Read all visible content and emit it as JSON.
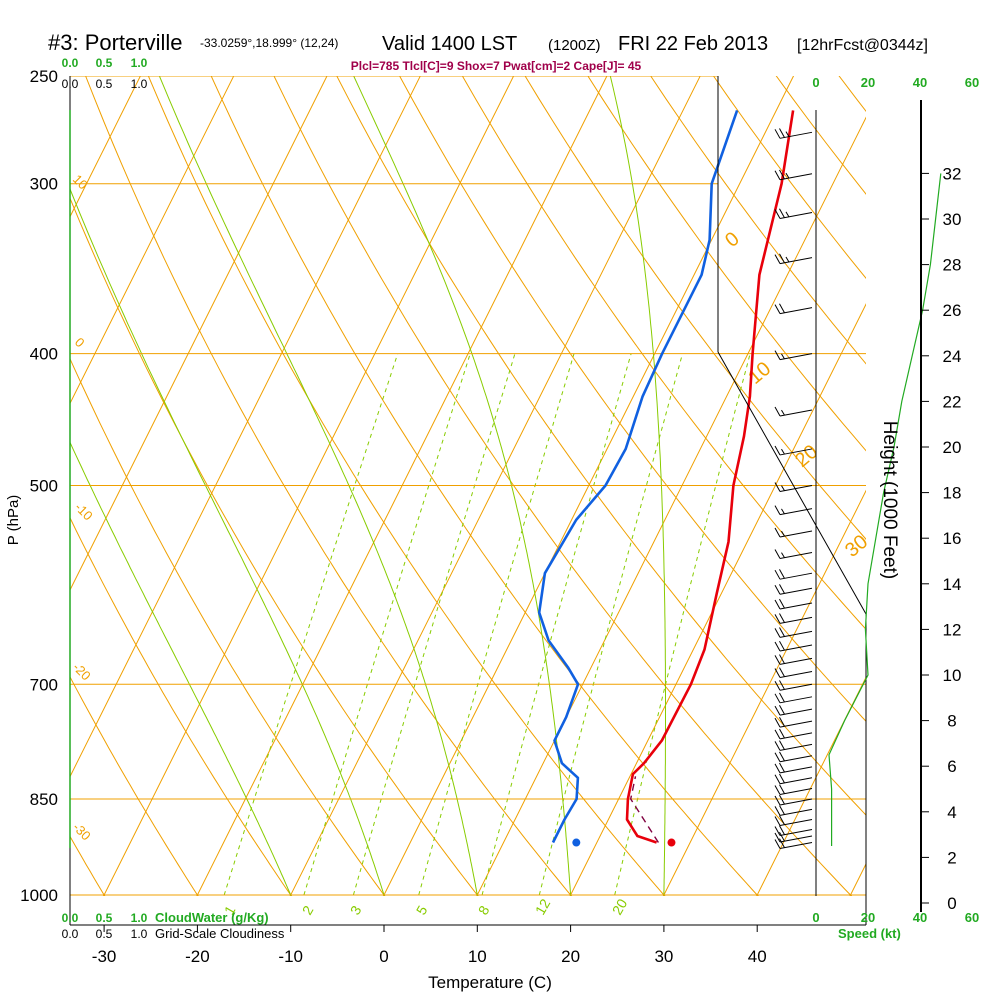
{
  "header": {
    "station": "#3: Porterville",
    "coords": "-33.0259°,18.999° (12,24)",
    "valid": "Valid 1400 LST",
    "utc": "(1200Z)",
    "date": "FRI 22 Feb 2013",
    "forecast": "[12hrFcst@0344z]",
    "indices": "Plcl=785 Tlcl[C]=9 Shox=7 Pwat[cm]=2 Cape[J]= 45"
  },
  "colors": {
    "isotherm": "#f0a000",
    "dry_adiabat": "#f0a000",
    "moist_adiabat": "#88cc00",
    "mixing_ratio": "#88cc00",
    "temperature": "#e8000b",
    "dewpoint": "#1060e0",
    "parcel": "#800040",
    "green_label": "#22aa22",
    "magenta_text": "#a0004a",
    "wind": "#000000",
    "cloud": "#22aa22"
  },
  "chart_data": {
    "type": "skew-t log-p",
    "xlabel": "Temperature (C)",
    "ylabel": "P (hPa)",
    "y2label": "Height (1000 Feet)",
    "xlim": [
      -33,
      35
    ],
    "ylim_hpa": [
      1000,
      250
    ],
    "x_ticks": [
      "-30",
      "-20",
      "-10",
      "0",
      "10",
      "20",
      "30",
      "40"
    ],
    "x_tick_values": [
      -30,
      -20,
      -10,
      0,
      10,
      20,
      30,
      40
    ],
    "pressure_levels": [
      1000,
      850,
      700,
      500,
      400,
      300,
      250
    ],
    "pressure_labels": [
      "1000",
      "850",
      "700",
      "500",
      "400",
      "300",
      "250"
    ],
    "height_ticks": [
      "0",
      "2",
      "4",
      "6",
      "8",
      "10",
      "12",
      "14",
      "16",
      "18",
      "20",
      "22",
      "24",
      "26",
      "28",
      "30",
      "32"
    ],
    "height_tick_values_kft": [
      0,
      2,
      4,
      6,
      8,
      10,
      12,
      14,
      16,
      18,
      20,
      22,
      24,
      26,
      28,
      30,
      32
    ],
    "isotherm_labels": [
      "0",
      "10",
      "20",
      "30"
    ],
    "dry_adiabat_labels": [
      "10",
      "0",
      "-10",
      "-20",
      "-30"
    ],
    "mixing_ratio_labels": [
      "1",
      "2",
      "3",
      "5",
      "8",
      "12",
      "20"
    ],
    "mixing_ratio_values": [
      1,
      2,
      3,
      5,
      8,
      12,
      20
    ],
    "moist_adiabat_temps": [
      -10,
      0,
      10,
      20,
      30
    ],
    "cloud_axis_labels": [
      "0.0",
      "0.5",
      "1.0"
    ],
    "cloud_water_label": "CloudWater (g/Kg)",
    "cloudiness_label": "Grid-Scale Cloudiness",
    "speed_label": "Speed (kt)",
    "speed_ticks": [
      "0",
      "20",
      "40",
      "60"
    ],
    "speed_tick_values": [
      0,
      20,
      40,
      60
    ],
    "temperature": [
      {
        "p": 915,
        "t": 26.4
      },
      {
        "p": 905,
        "t": 24.0
      },
      {
        "p": 880,
        "t": 22.0
      },
      {
        "p": 850,
        "t": 21.0
      },
      {
        "p": 815,
        "t": 20.2
      },
      {
        "p": 800,
        "t": 20.8
      },
      {
        "p": 770,
        "t": 21.5
      },
      {
        "p": 700,
        "t": 21.6
      },
      {
        "p": 660,
        "t": 21.2
      },
      {
        "p": 600,
        "t": 19.5
      },
      {
        "p": 550,
        "t": 18.0
      },
      {
        "p": 500,
        "t": 15.5
      },
      {
        "p": 460,
        "t": 14.0
      },
      {
        "p": 430,
        "t": 12.5
      },
      {
        "p": 400,
        "t": 10.5
      },
      {
        "p": 350,
        "t": 7.0
      },
      {
        "p": 300,
        "t": 4.5
      },
      {
        "p": 265,
        "t": 1.8
      }
    ],
    "dewpoint": [
      {
        "p": 915,
        "td": 15.3
      },
      {
        "p": 880,
        "td": 15.3
      },
      {
        "p": 850,
        "td": 15.5
      },
      {
        "p": 820,
        "td": 14.5
      },
      {
        "p": 800,
        "td": 12.0
      },
      {
        "p": 770,
        "td": 10.0
      },
      {
        "p": 740,
        "td": 10.0
      },
      {
        "p": 700,
        "td": 9.5
      },
      {
        "p": 680,
        "td": 7.5
      },
      {
        "p": 650,
        "td": 4.0
      },
      {
        "p": 620,
        "td": 1.5
      },
      {
        "p": 580,
        "td": 0.0
      },
      {
        "p": 530,
        "td": 0.5
      },
      {
        "p": 500,
        "td": 1.8
      },
      {
        "p": 470,
        "td": 2.0
      },
      {
        "p": 430,
        "td": 1.0
      },
      {
        "p": 400,
        "td": 0.8
      },
      {
        "p": 350,
        "td": 0.8
      },
      {
        "p": 330,
        "td": -0.2
      },
      {
        "p": 300,
        "td": -3.0
      },
      {
        "p": 265,
        "td": -4.2
      }
    ],
    "parcel": [
      {
        "p": 915,
        "t": 26.6
      },
      {
        "p": 880,
        "t": 23.8
      },
      {
        "p": 850,
        "t": 21.3
      },
      {
        "p": 818,
        "t": 20.6
      }
    ],
    "surface_temp_marker": {
      "p": 915,
      "t": 28.0
    },
    "surface_dewpoint_marker": {
      "p": 915,
      "td": 17.8
    },
    "wind_levels": [
      {
        "p": 915,
        "speed_kt": 20
      },
      {
        "p": 905,
        "speed_kt": 20
      },
      {
        "p": 895,
        "speed_kt": 20
      },
      {
        "p": 880,
        "speed_kt": 20
      },
      {
        "p": 865,
        "speed_kt": 20
      },
      {
        "p": 850,
        "speed_kt": 20
      },
      {
        "p": 835,
        "speed_kt": 20
      },
      {
        "p": 820,
        "speed_kt": 20
      },
      {
        "p": 805,
        "speed_kt": 20
      },
      {
        "p": 790,
        "speed_kt": 20
      },
      {
        "p": 775,
        "speed_kt": 20
      },
      {
        "p": 760,
        "speed_kt": 20
      },
      {
        "p": 745,
        "speed_kt": 20
      },
      {
        "p": 730,
        "speed_kt": 20
      },
      {
        "p": 715,
        "speed_kt": 20
      },
      {
        "p": 700,
        "speed_kt": 20
      },
      {
        "p": 685,
        "speed_kt": 20
      },
      {
        "p": 670,
        "speed_kt": 20
      },
      {
        "p": 655,
        "speed_kt": 20
      },
      {
        "p": 640,
        "speed_kt": 20
      },
      {
        "p": 625,
        "speed_kt": 20
      },
      {
        "p": 610,
        "speed_kt": 20
      },
      {
        "p": 595,
        "speed_kt": 20
      },
      {
        "p": 580,
        "speed_kt": 20
      },
      {
        "p": 560,
        "speed_kt": 15
      },
      {
        "p": 540,
        "speed_kt": 15
      },
      {
        "p": 520,
        "speed_kt": 15
      },
      {
        "p": 500,
        "speed_kt": 15
      },
      {
        "p": 470,
        "speed_kt": 15
      },
      {
        "p": 440,
        "speed_kt": 15
      },
      {
        "p": 400,
        "speed_kt": 15
      },
      {
        "p": 370,
        "speed_kt": 20
      },
      {
        "p": 340,
        "speed_kt": 25
      },
      {
        "p": 315,
        "speed_kt": 25
      },
      {
        "p": 295,
        "speed_kt": 25
      },
      {
        "p": 275,
        "speed_kt": 25
      }
    ],
    "wind_speed_profile": [
      {
        "kft": 2.5,
        "speed_kt": 6
      },
      {
        "kft": 3.5,
        "speed_kt": 6
      },
      {
        "kft": 5,
        "speed_kt": 6
      },
      {
        "kft": 6.5,
        "speed_kt": 5
      },
      {
        "kft": 8,
        "speed_kt": 11
      },
      {
        "kft": 10,
        "speed_kt": 20
      },
      {
        "kft": 12,
        "speed_kt": 19
      },
      {
        "kft": 14,
        "speed_kt": 20
      },
      {
        "kft": 16,
        "speed_kt": 23
      },
      {
        "kft": 18,
        "speed_kt": 26
      },
      {
        "kft": 20,
        "speed_kt": 30
      },
      {
        "kft": 22,
        "speed_kt": 33
      },
      {
        "kft": 24,
        "speed_kt": 37
      },
      {
        "kft": 26,
        "speed_kt": 41
      },
      {
        "kft": 28,
        "speed_kt": 44
      },
      {
        "kft": 30,
        "speed_kt": 46
      },
      {
        "kft": 32,
        "speed_kt": 48
      }
    ]
  }
}
